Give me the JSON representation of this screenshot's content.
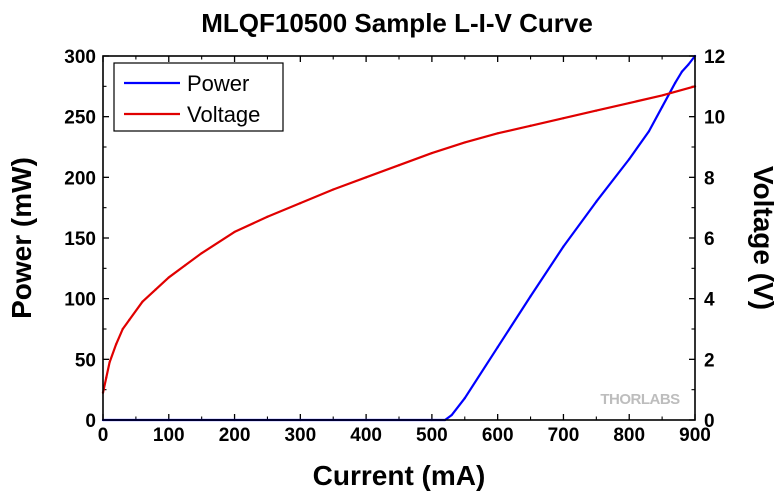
{
  "chart_data": {
    "type": "line",
    "title": "MLQF10500 Sample L-I-V Curve",
    "xlabel": "Current (mA)",
    "ylabel": "Power (mW)",
    "y2label": "Voltage (V)",
    "xlim": [
      0,
      900
    ],
    "ylim": [
      0,
      300
    ],
    "y2lim": [
      0,
      12
    ],
    "xticks": [
      0,
      100,
      200,
      300,
      400,
      500,
      600,
      700,
      800,
      900
    ],
    "yticks": [
      0,
      50,
      100,
      150,
      200,
      250,
      300
    ],
    "y2ticks": [
      0,
      2,
      4,
      6,
      8,
      10,
      12
    ],
    "legend_position": "top-left",
    "watermark": "THORLABS",
    "series": [
      {
        "name": "Power",
        "axis": "left",
        "color": "#0000ff",
        "x": [
          0,
          100,
          200,
          300,
          400,
          500,
          520,
          530,
          550,
          600,
          650,
          700,
          750,
          800,
          830,
          850,
          870,
          880,
          890,
          900
        ],
        "y": [
          0,
          0,
          0,
          0,
          0,
          0,
          0,
          4,
          18,
          60,
          102,
          143,
          180,
          215,
          238,
          258,
          278,
          287,
          293,
          300
        ]
      },
      {
        "name": "Voltage",
        "axis": "right",
        "color": "#e00000",
        "x": [
          0,
          5,
          10,
          20,
          30,
          40,
          60,
          80,
          100,
          125,
          150,
          200,
          250,
          300,
          350,
          400,
          450,
          500,
          550,
          600,
          650,
          700,
          750,
          800,
          850,
          900
        ],
        "y": [
          0.9,
          1.4,
          1.9,
          2.5,
          3.0,
          3.3,
          3.9,
          4.3,
          4.7,
          5.1,
          5.5,
          6.2,
          6.7,
          7.15,
          7.6,
          8.0,
          8.4,
          8.8,
          9.15,
          9.45,
          9.7,
          9.95,
          10.2,
          10.45,
          10.7,
          11.0
        ]
      }
    ]
  }
}
